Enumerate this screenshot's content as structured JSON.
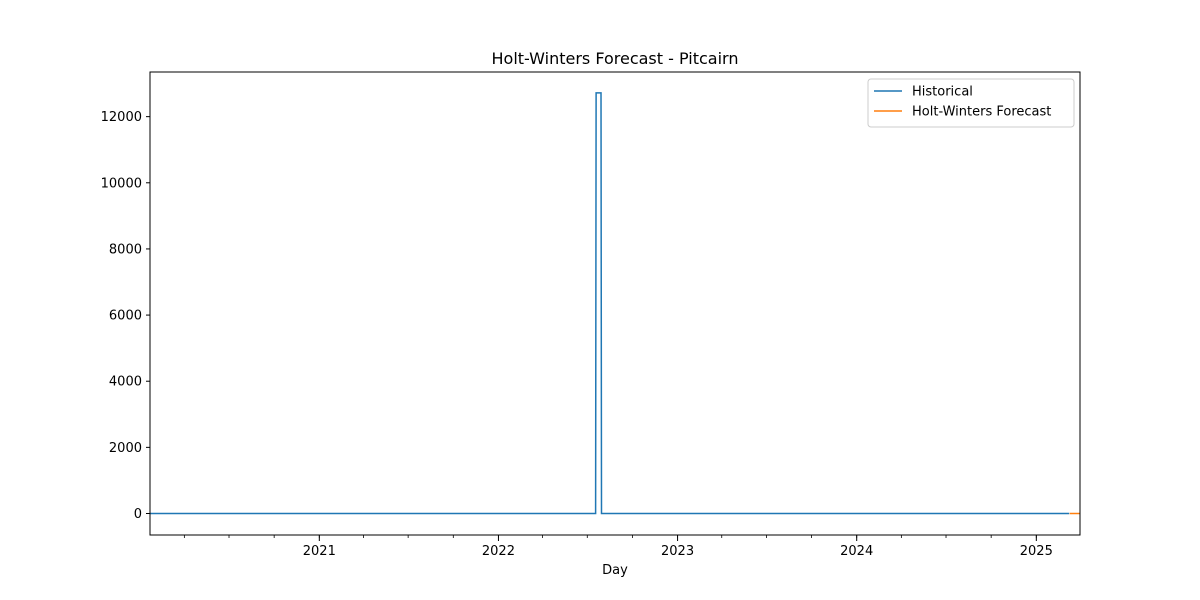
{
  "chart_data": {
    "type": "line",
    "title": "Holt-Winters Forecast - Pitcairn",
    "xlabel": "Day",
    "ylabel": "",
    "x_axis_type": "date",
    "xlim": [
      "2020-01-22",
      "2025-03-31"
    ],
    "ylim": [
      -650,
      13350
    ],
    "y_ticks": [
      0,
      2000,
      4000,
      6000,
      8000,
      10000,
      12000
    ],
    "x_ticks": [
      {
        "date": "2021-01-01",
        "label": "2021"
      },
      {
        "date": "2022-01-01",
        "label": "2022"
      },
      {
        "date": "2023-01-01",
        "label": "2023"
      },
      {
        "date": "2024-01-01",
        "label": "2024"
      },
      {
        "date": "2025-01-01",
        "label": "2025"
      }
    ],
    "grid": false,
    "legend": {
      "position": "upper-right"
    },
    "series": [
      {
        "name": "Historical",
        "color": "#1f77b4",
        "points": [
          {
            "x": "2020-01-22",
            "y": 0
          },
          {
            "x": "2022-07-18",
            "y": 0
          },
          {
            "x": "2022-07-19",
            "y": 12720
          },
          {
            "x": "2022-07-29",
            "y": 12720
          },
          {
            "x": "2022-07-30",
            "y": 0
          },
          {
            "x": "2025-03-09",
            "y": 0
          }
        ]
      },
      {
        "name": "Holt-Winters Forecast",
        "color": "#ff7f0e",
        "points": [
          {
            "x": "2025-03-10",
            "y": 0
          },
          {
            "x": "2025-03-31",
            "y": 0
          }
        ]
      }
    ]
  }
}
